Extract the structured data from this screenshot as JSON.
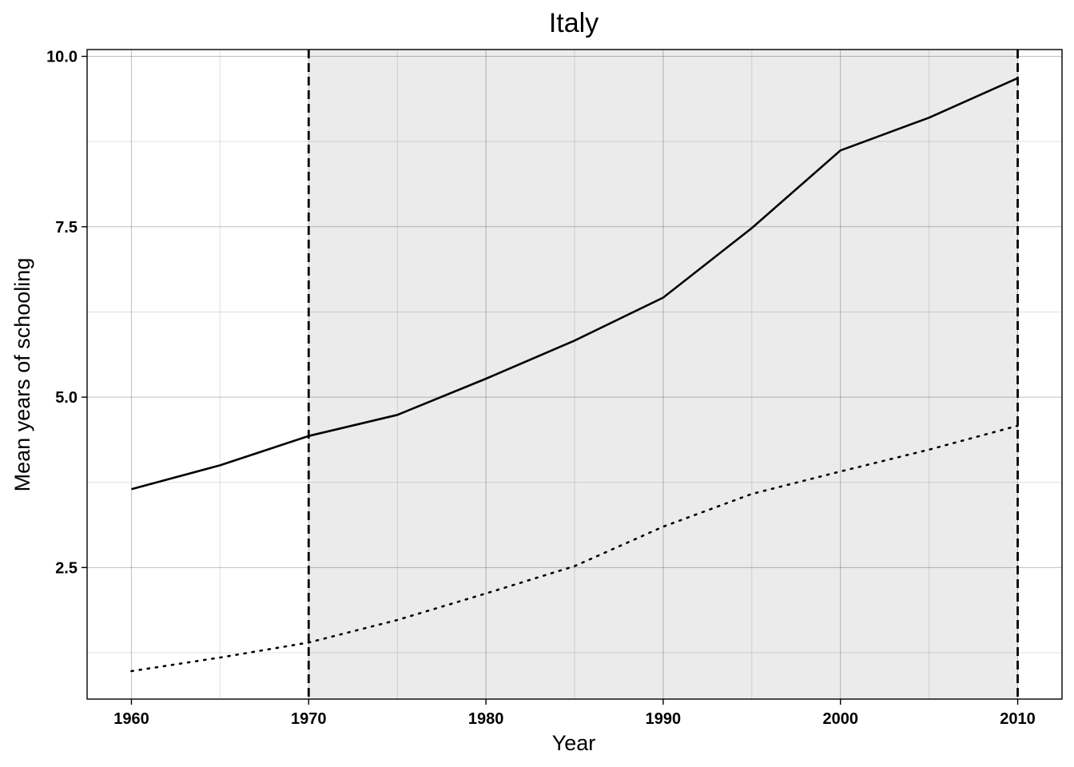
{
  "chart_data": {
    "type": "line",
    "title": "Italy",
    "xlabel": "Year",
    "ylabel": "Mean years of schooling",
    "xlim": [
      1957.5,
      2012.5
    ],
    "ylim": [
      0.57,
      10.1
    ],
    "x_ticks": [
      1960,
      1970,
      1980,
      1990,
      2000,
      2010
    ],
    "x_tick_labels": [
      "1960",
      "1970",
      "1980",
      "1990",
      "2000",
      "2010"
    ],
    "y_ticks": [
      2.5,
      5.0,
      7.5,
      10.0
    ],
    "y_tick_labels": [
      "2.5",
      "5.0",
      "7.5",
      "10.0"
    ],
    "grid": true,
    "shaded_region": {
      "x": [
        1970,
        2010
      ],
      "color": "#ebebeb"
    },
    "vertical_lines": [
      1970,
      2010
    ],
    "x": [
      1960,
      1965,
      1970,
      1975,
      1980,
      1985,
      1990,
      1995,
      2000,
      2005,
      2010
    ],
    "series": [
      {
        "style": "solid",
        "color": "#000000",
        "values": [
          3.65,
          4.0,
          4.43,
          4.74,
          5.27,
          5.83,
          6.46,
          7.48,
          8.62,
          9.1,
          9.68
        ]
      },
      {
        "style": "dotted",
        "color": "#000000",
        "values": [
          0.98,
          1.18,
          1.4,
          1.73,
          2.12,
          2.52,
          3.1,
          3.58,
          3.91,
          4.23,
          4.58
        ]
      }
    ],
    "legend": "none"
  }
}
